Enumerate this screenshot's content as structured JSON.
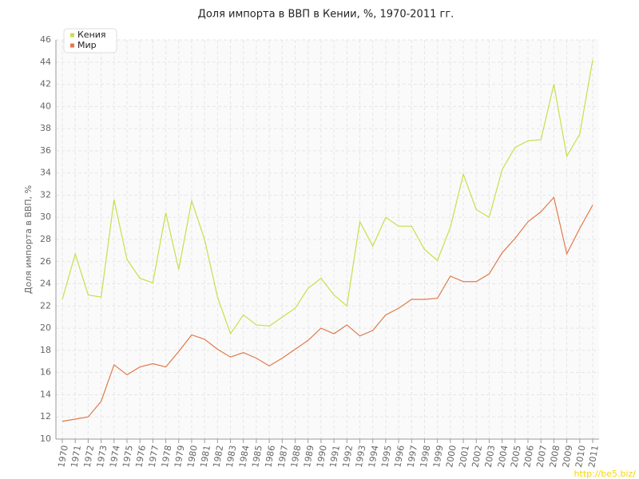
{
  "chart_data": {
    "type": "line",
    "title": "Доля импорта в ВВП в Кении, %, 1970-2011 гг.",
    "y_label": "Доля импорта в ВВП, %",
    "watermark": "http://be5.biz/",
    "categories": [
      "1970",
      "1971",
      "1972",
      "1973",
      "1974",
      "1975",
      "1976",
      "1977",
      "1978",
      "1979",
      "1980",
      "1981",
      "1982",
      "1983",
      "1984",
      "1985",
      "1986",
      "1987",
      "1988",
      "1989",
      "1990",
      "1991",
      "1992",
      "1993",
      "1994",
      "1995",
      "1996",
      "1997",
      "1998",
      "1999",
      "2000",
      "2001",
      "2002",
      "2003",
      "2004",
      "2005",
      "2006",
      "2007",
      "2008",
      "2009",
      "2010",
      "2011"
    ],
    "series": [
      {
        "name": "Кения",
        "color": "#c5e04a",
        "values": [
          22.6,
          26.7,
          23.0,
          22.8,
          31.6,
          26.2,
          24.5,
          24.1,
          30.4,
          25.3,
          31.5,
          28.0,
          22.8,
          19.5,
          21.2,
          20.3,
          20.2,
          21.0,
          21.8,
          23.6,
          24.5,
          23.0,
          22.0,
          29.6,
          27.4,
          30.0,
          29.2,
          29.2,
          27.1,
          26.1,
          29.1,
          33.9,
          30.7,
          30.0,
          34.3,
          36.3,
          36.9,
          37.0,
          42.0,
          35.5,
          37.5,
          44.2
        ]
      },
      {
        "name": "Мир",
        "color": "#e07a4a",
        "values": [
          11.6,
          11.8,
          12.0,
          13.4,
          16.7,
          15.8,
          16.5,
          16.8,
          16.5,
          17.9,
          19.4,
          19.0,
          18.1,
          17.4,
          17.8,
          17.3,
          16.6,
          17.3,
          18.1,
          18.9,
          20.0,
          19.5,
          20.3,
          19.3,
          19.8,
          21.2,
          21.8,
          22.6,
          22.6,
          22.7,
          24.7,
          24.2,
          24.2,
          24.9,
          26.8,
          28.1,
          29.6,
          30.5,
          31.8,
          26.7,
          29.0,
          31.1
        ]
      }
    ],
    "ylim": [
      10,
      46
    ],
    "yticks": [
      10,
      12,
      14,
      16,
      18,
      20,
      22,
      24,
      26,
      28,
      30,
      32,
      34,
      36,
      38,
      40,
      42,
      44,
      46
    ],
    "grid": true,
    "legend": "top-left"
  }
}
